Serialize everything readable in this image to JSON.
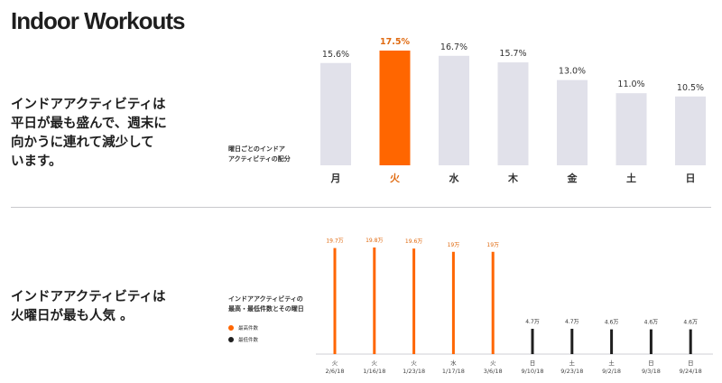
{
  "page": {
    "title": "Indoor Workouts",
    "headline_top": "インドアアクティビティは\n平日が最も盛んで、週末に\n向かうに連れて減少して\nいます。",
    "headline_bottom": "インドアアクティビティは\n火曜日が最も人気 。"
  },
  "colors": {
    "accent": "#ff6600",
    "accent_label": "#e06a10",
    "bar_gray": "#e1e1ea",
    "dark": "#1f1f1f"
  },
  "chart_data": [
    {
      "type": "bar",
      "title": "",
      "note": "曜日ごとのインドア\nアクティビティの配分",
      "categories": [
        "月",
        "火",
        "水",
        "木",
        "金",
        "土",
        "日"
      ],
      "values": [
        15.6,
        17.5,
        16.7,
        15.7,
        13.0,
        11.0,
        10.5
      ],
      "value_labels": [
        "15.6%",
        "17.5%",
        "16.7%",
        "15.7%",
        "13.0%",
        "11.0%",
        "10.5%"
      ],
      "highlight_index": 1,
      "ylim": [
        0,
        17.5
      ],
      "grid": false
    },
    {
      "type": "bar",
      "title": "",
      "note": "インドアアクティビティの\n最高・最低件数とその曜日",
      "legend": [
        {
          "label": "最高件数",
          "color": "#ff6600"
        },
        {
          "label": "最低件数",
          "color": "#1f1f1f"
        }
      ],
      "categories": [
        "火\n2/6/18",
        "火\n1/16/18",
        "火\n1/23/18",
        "水\n1/17/18",
        "火\n3/6/18",
        "日\n9/10/18",
        "土\n9/23/18",
        "土\n9/2/18",
        "日\n9/3/18",
        "日\n9/24/18"
      ],
      "values": [
        19.7,
        19.8,
        19.6,
        19,
        19,
        4.7,
        4.7,
        4.6,
        4.6,
        4.6
      ],
      "value_labels": [
        "19.7万",
        "19.8万",
        "19.6万",
        "19万",
        "19万",
        "4.7万",
        "4.7万",
        "4.6万",
        "4.6万",
        "4.6万"
      ],
      "series_group": [
        "high",
        "high",
        "high",
        "high",
        "high",
        "low",
        "low",
        "low",
        "low",
        "low"
      ],
      "unit": "万",
      "ylim": [
        0,
        19.8
      ],
      "grid": false
    }
  ]
}
